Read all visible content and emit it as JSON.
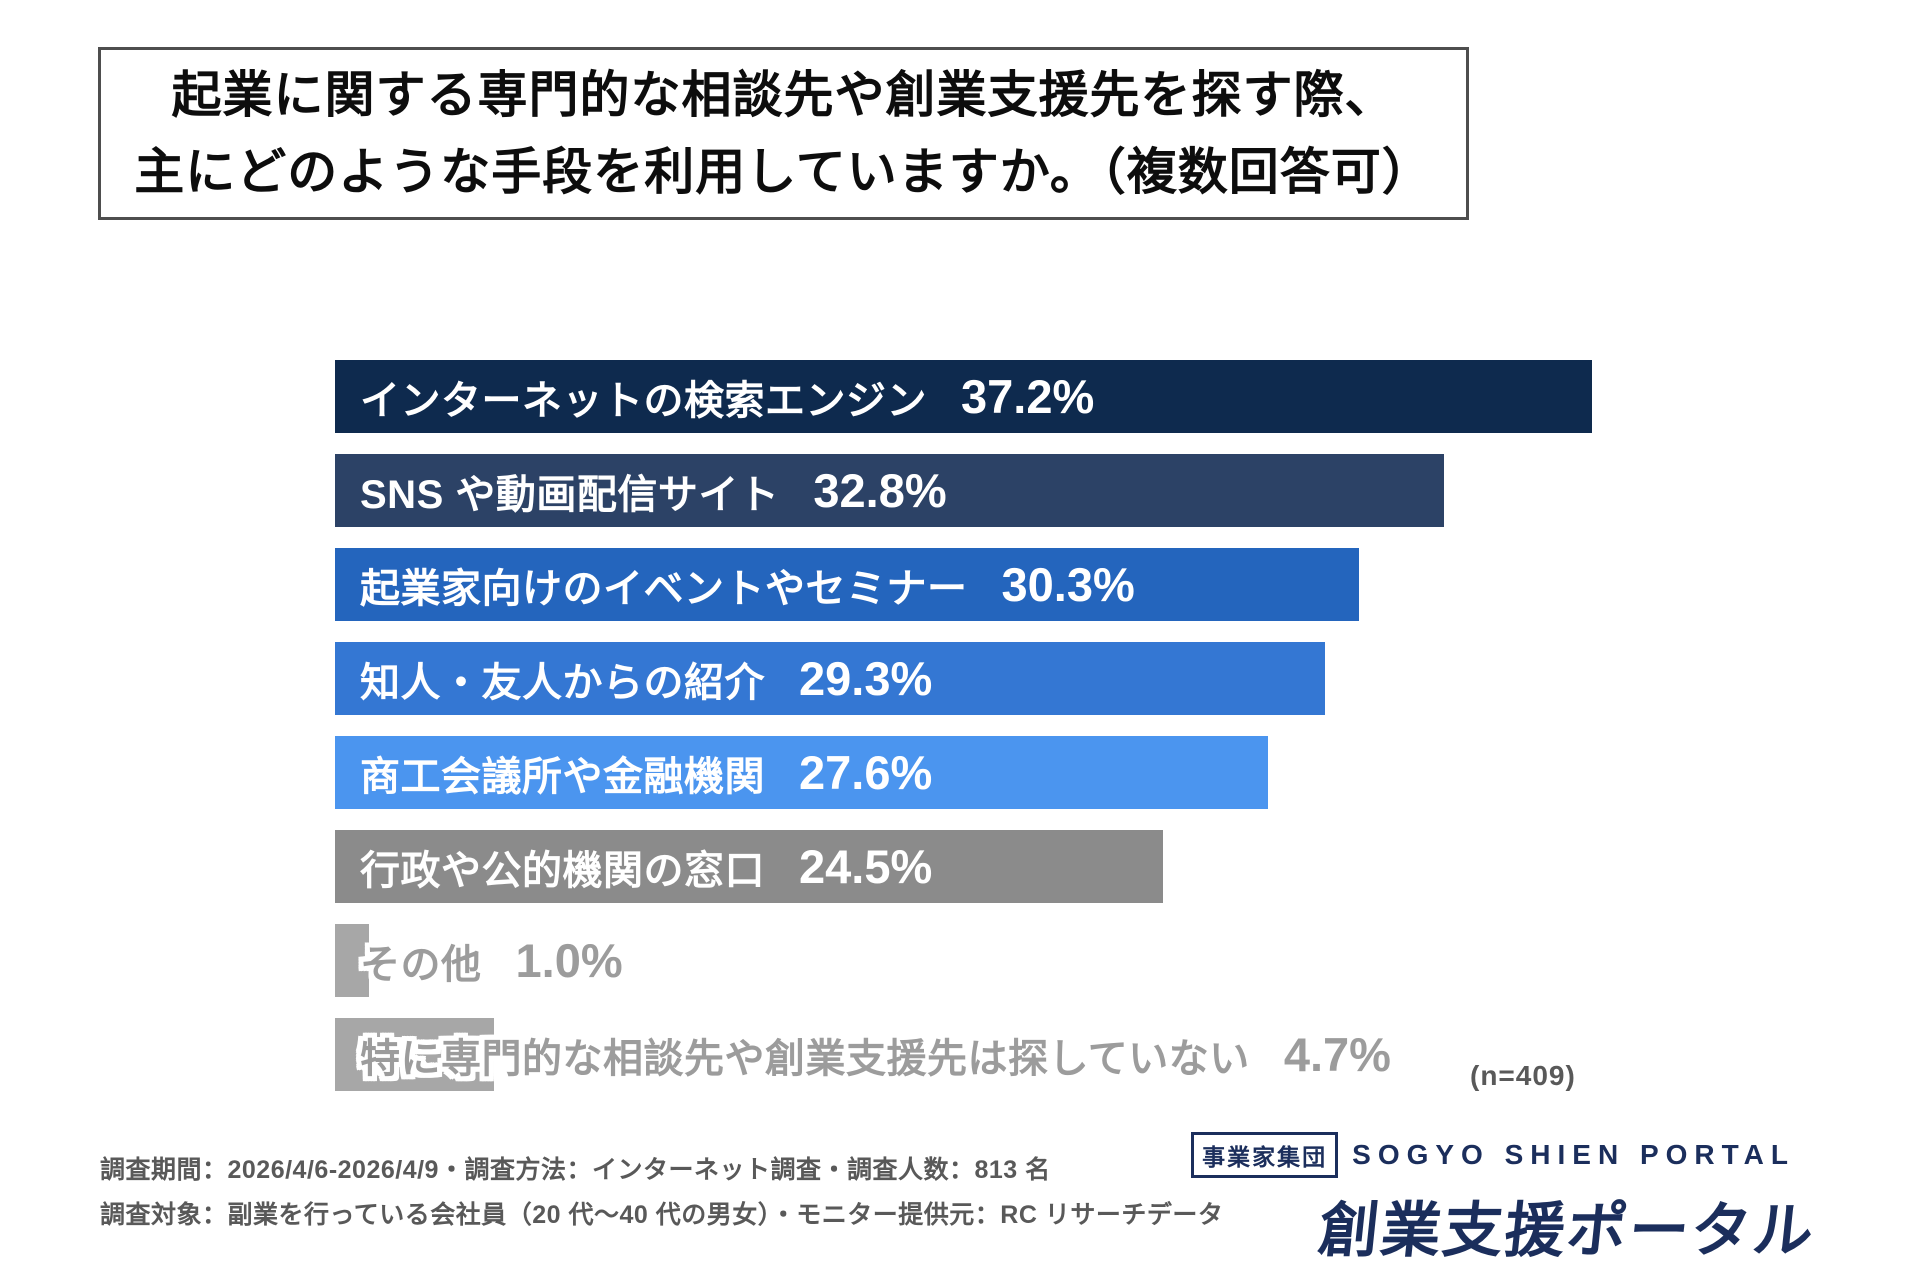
{
  "title": {
    "line1": "起業に関する専門的な相談先や創業支援先を探す際、",
    "line2": "主にどのような手段を利用していますか。（複数回答可）"
  },
  "chart_data": {
    "type": "bar",
    "orientation": "horizontal",
    "unit": "%",
    "xlim": [
      0,
      40
    ],
    "grid": false,
    "legend": "none",
    "categories": [
      "インターネットの検索エンジン",
      "SNS や動画配信サイト",
      "起業家向けのイベントやセミナー",
      "知人・友人からの紹介",
      "商工会議所や金融機関",
      "行政や公的機関の窓口",
      "その他",
      "特に専門的な相談先や創業支援先は探していない"
    ],
    "values": [
      37.2,
      32.8,
      30.3,
      29.3,
      27.6,
      24.5,
      1.0,
      4.7
    ],
    "value_labels": [
      "37.2%",
      "32.8%",
      "30.3%",
      "29.3%",
      "27.6%",
      "24.5%",
      "1.0%",
      "4.7%"
    ],
    "bar_colors": [
      "#0e2a4e",
      "#2c4266",
      "#2465bd",
      "#3477d3",
      "#4b95ef",
      "#8b8b8b",
      "#a7a7a7",
      "#a7a7a7"
    ],
    "label_styles": [
      "light",
      "light",
      "light",
      "light",
      "light",
      "light",
      "outline",
      "outline"
    ],
    "sample_size_label": "(n=409)"
  },
  "footnotes": {
    "line1": "調査期間：2026/4/6-2026/4/9・調査方法：インターネット調査・調査人数：813 名",
    "line2": "調査対象：副業を行っている会社員（20 代～40 代の男女）・モニター提供元：RC リサーチデータ"
  },
  "logo": {
    "badge": "事業家集団",
    "name_en": "SOGYO SHIEN PORTAL",
    "name_jp": "創業支援ポータル",
    "brand_color": "#1b2e5c"
  }
}
